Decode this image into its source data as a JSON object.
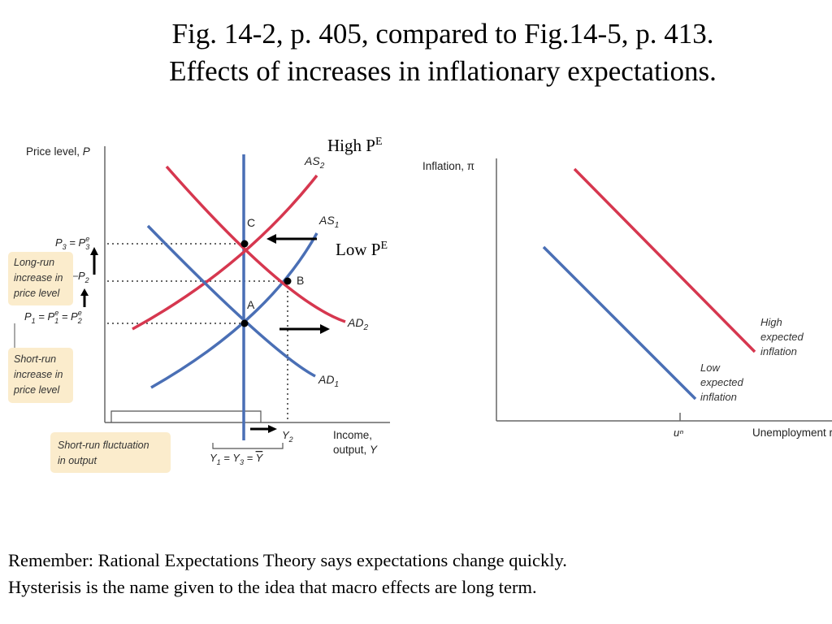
{
  "title": {
    "line1": "Fig. 14-2, p. 405, compared to Fig.14-5, p. 413.",
    "line2": "Effects of increases in inflationary expectations."
  },
  "colors": {
    "red": "#d6374f",
    "blue": "#4a6fb5",
    "callout_bg": "#fbeccc",
    "axis": "#666666"
  },
  "left_diagram": {
    "y_axis_label": "Price level, P",
    "x_axis_label_line1": "Income,",
    "x_axis_label_line2": "output, Y",
    "curves": {
      "as2": "AS2",
      "as1": "AS1",
      "ad2": "AD2",
      "ad1": "AD1"
    },
    "points": {
      "c": "C",
      "b": "B",
      "a": "A"
    },
    "price_ticks": {
      "p3": "P3 = Pe3",
      "p2": "P2",
      "p1": "P1 = Pe1 = Pe2"
    },
    "income_ticks": {
      "y2": "Y2",
      "y1": "Y1 = Y3 = Ȳ"
    },
    "callouts": {
      "long_run": [
        "Long-run",
        "increase in",
        "price level"
      ],
      "short_run": [
        "Short-run",
        "increase in",
        "price level"
      ],
      "fluctuation": [
        "Short-run fluctuation",
        "in output"
      ]
    }
  },
  "annotations": {
    "high_pe": "High P",
    "low_pe": "Low P",
    "superscript_e": "E"
  },
  "right_diagram": {
    "y_axis_label": "Inflation, π",
    "x_axis_label": "Unemployment rate, u",
    "x_tick": "uⁿ",
    "curves": {
      "high": [
        "High",
        "expected",
        "inflation"
      ],
      "low": [
        "Low",
        "expected",
        "inflation"
      ]
    }
  },
  "footer": {
    "line1": "Remember: Rational Expectations Theory says expectations change quickly.",
    "line2": "Hysterisis is the name given to the idea that macro effects are long term."
  }
}
